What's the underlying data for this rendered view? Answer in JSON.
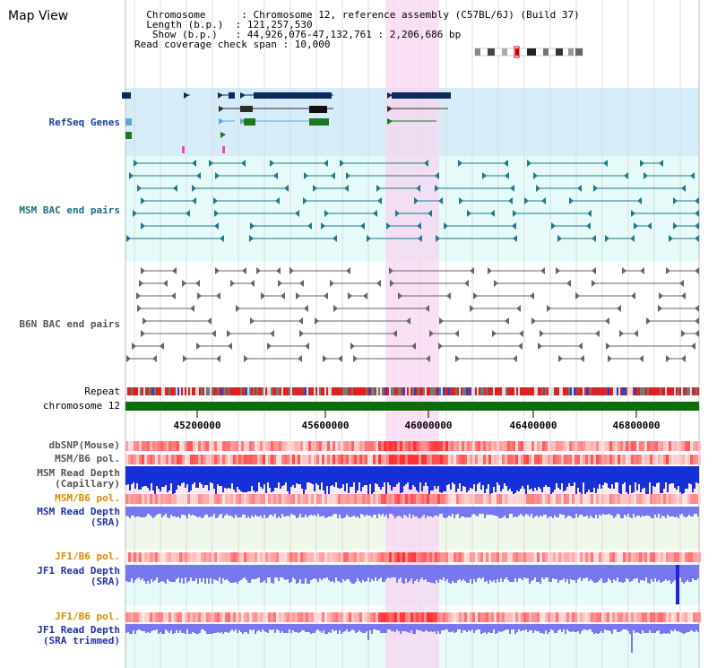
{
  "title": "Map View",
  "info": {
    "lines": [
      "  Chromosome      : Chromosome 12, reference assembly (C57BL/6J) (Build 37)",
      "  Length (b.p.)  : 121,257,530",
      "   Show (b.p.)   : 44,926,076-47,132,761 : 2,206,686 bp",
      "Read coverage check span : 10,000"
    ]
  },
  "tracks": {
    "refseq": "RefSeq Genes",
    "msm_bac": "MSM BAC end pairs",
    "b6n_bac": "B6N BAC end pairs",
    "repeat": "Repeat",
    "chromosome": "chromosome 12",
    "dbsnp": "dbSNP(Mouse)",
    "msm_b6_pol_1": "MSM/B6 pol.",
    "msm_depth_cap_1": "MSM Read Depth",
    "msm_depth_cap_2": "(Capillary)",
    "msm_b6_pol_2": "MSM/B6 pol.",
    "msm_depth_sra_1": "MSM Read Depth",
    "msm_depth_sra_2": "(SRA)",
    "jf1_b6_pol_1": "JF1/B6 pol.",
    "jf1_depth_sra_1": "JF1 Read Depth",
    "jf1_depth_sra_2": "(SRA)",
    "jf1_b6_pol_2": "JF1/B6 pol.",
    "jf1_depth_trim_1": "JF1 Read Depth",
    "jf1_depth_trim_2": "(SRA trimmed)"
  },
  "axis": {
    "ticks": [
      "45200000",
      "45600000",
      "46000000",
      "46400000",
      "46800000"
    ]
  },
  "colors": {
    "refseq_bg": "#d6ecf8",
    "msm_bg": "#e6fafa",
    "highlight": "#f7d6f0",
    "chromosome_bar": "#0a6e0a",
    "depth_blue": "#2222dd",
    "depth_light": "#7777ee"
  }
}
